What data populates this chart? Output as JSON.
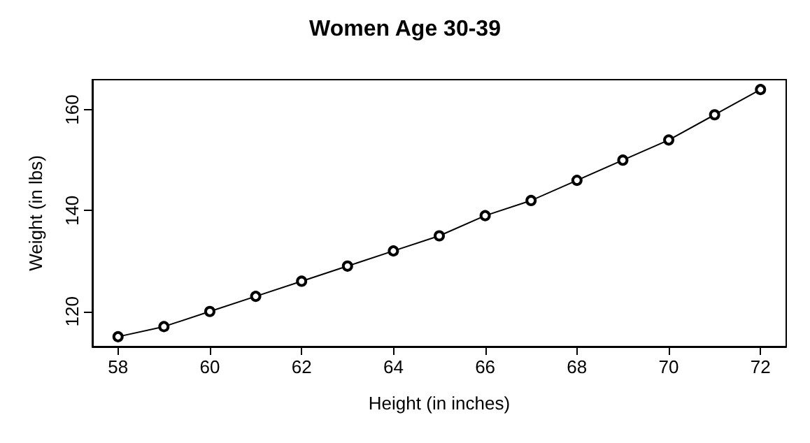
{
  "chart_data": {
    "type": "line",
    "title": "Women Age 30-39",
    "xlabel": "Height (in inches)",
    "ylabel": "Weight (in lbs)",
    "x": [
      58,
      59,
      60,
      61,
      62,
      63,
      64,
      65,
      66,
      67,
      68,
      69,
      70,
      71,
      72
    ],
    "series": [
      {
        "color": "#000000",
        "values": [
          115,
          117,
          120,
          123,
          126,
          129,
          132,
          135,
          139,
          142,
          146,
          150,
          154,
          159,
          164
        ]
      }
    ],
    "xlim": [
      57.44,
      72.56
    ],
    "ylim": [
      113.04,
      165.96
    ],
    "xticks": [
      58,
      60,
      62,
      64,
      66,
      68,
      70,
      72
    ],
    "yticks": [
      120,
      140,
      160
    ],
    "marker": "circle",
    "line_style": "solid",
    "grid": false
  }
}
